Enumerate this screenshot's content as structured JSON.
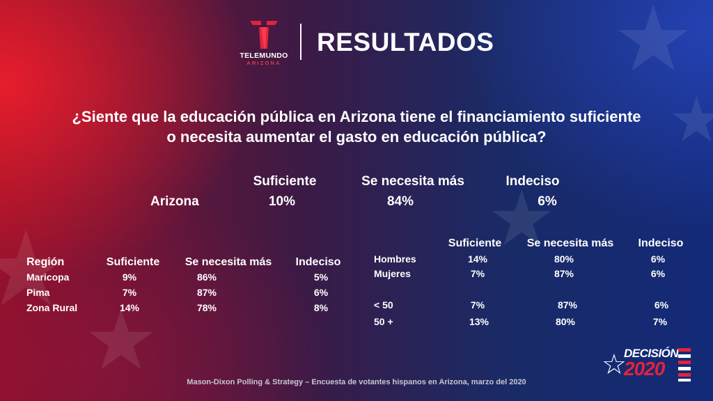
{
  "brand": {
    "name": "TELEMUNDO",
    "region": "ARIZONA",
    "brand_color": "#e4223a"
  },
  "header": {
    "title": "RESULTADOS"
  },
  "question": {
    "line1": "¿Siente que la educación pública en Arizona tiene el financiamiento suficiente",
    "line2": "o necesita aumentar el gasto en educación pública?"
  },
  "arizona": {
    "headers": [
      "Suficiente",
      "Se necesita más",
      "Indeciso"
    ],
    "label": "Arizona",
    "values": [
      "10%",
      "84%",
      "6%"
    ]
  },
  "region_table": {
    "headers": [
      "Región",
      "Suficiente",
      "Se necesita más",
      "Indeciso"
    ],
    "rows": [
      [
        "Maricopa",
        "9%",
        "86%",
        "5%"
      ],
      [
        "Pima",
        "7%",
        "87%",
        "6%"
      ],
      [
        "Zona Rural",
        "14%",
        "78%",
        "8%"
      ]
    ]
  },
  "demo_table": {
    "headers": [
      "Suficiente",
      "Se necesita más",
      "Indeciso"
    ],
    "rows": [
      [
        "Hombres",
        "14%",
        "80%",
        "6%"
      ],
      [
        "Mujeres",
        "7%",
        "87%",
        "6%"
      ],
      [
        "< 50",
        "7%",
        "87%",
        "6%"
      ],
      [
        "50 +",
        "13%",
        "80%",
        "7%"
      ]
    ]
  },
  "footer": {
    "source": "Mason-Dixon  Polling & Strategy – Encuesta de votantes hispanos en Arizona, marzo del 2020"
  },
  "badge": {
    "line1": "DECISIÓN",
    "line2": "2020",
    "accent": "#e4223a"
  }
}
